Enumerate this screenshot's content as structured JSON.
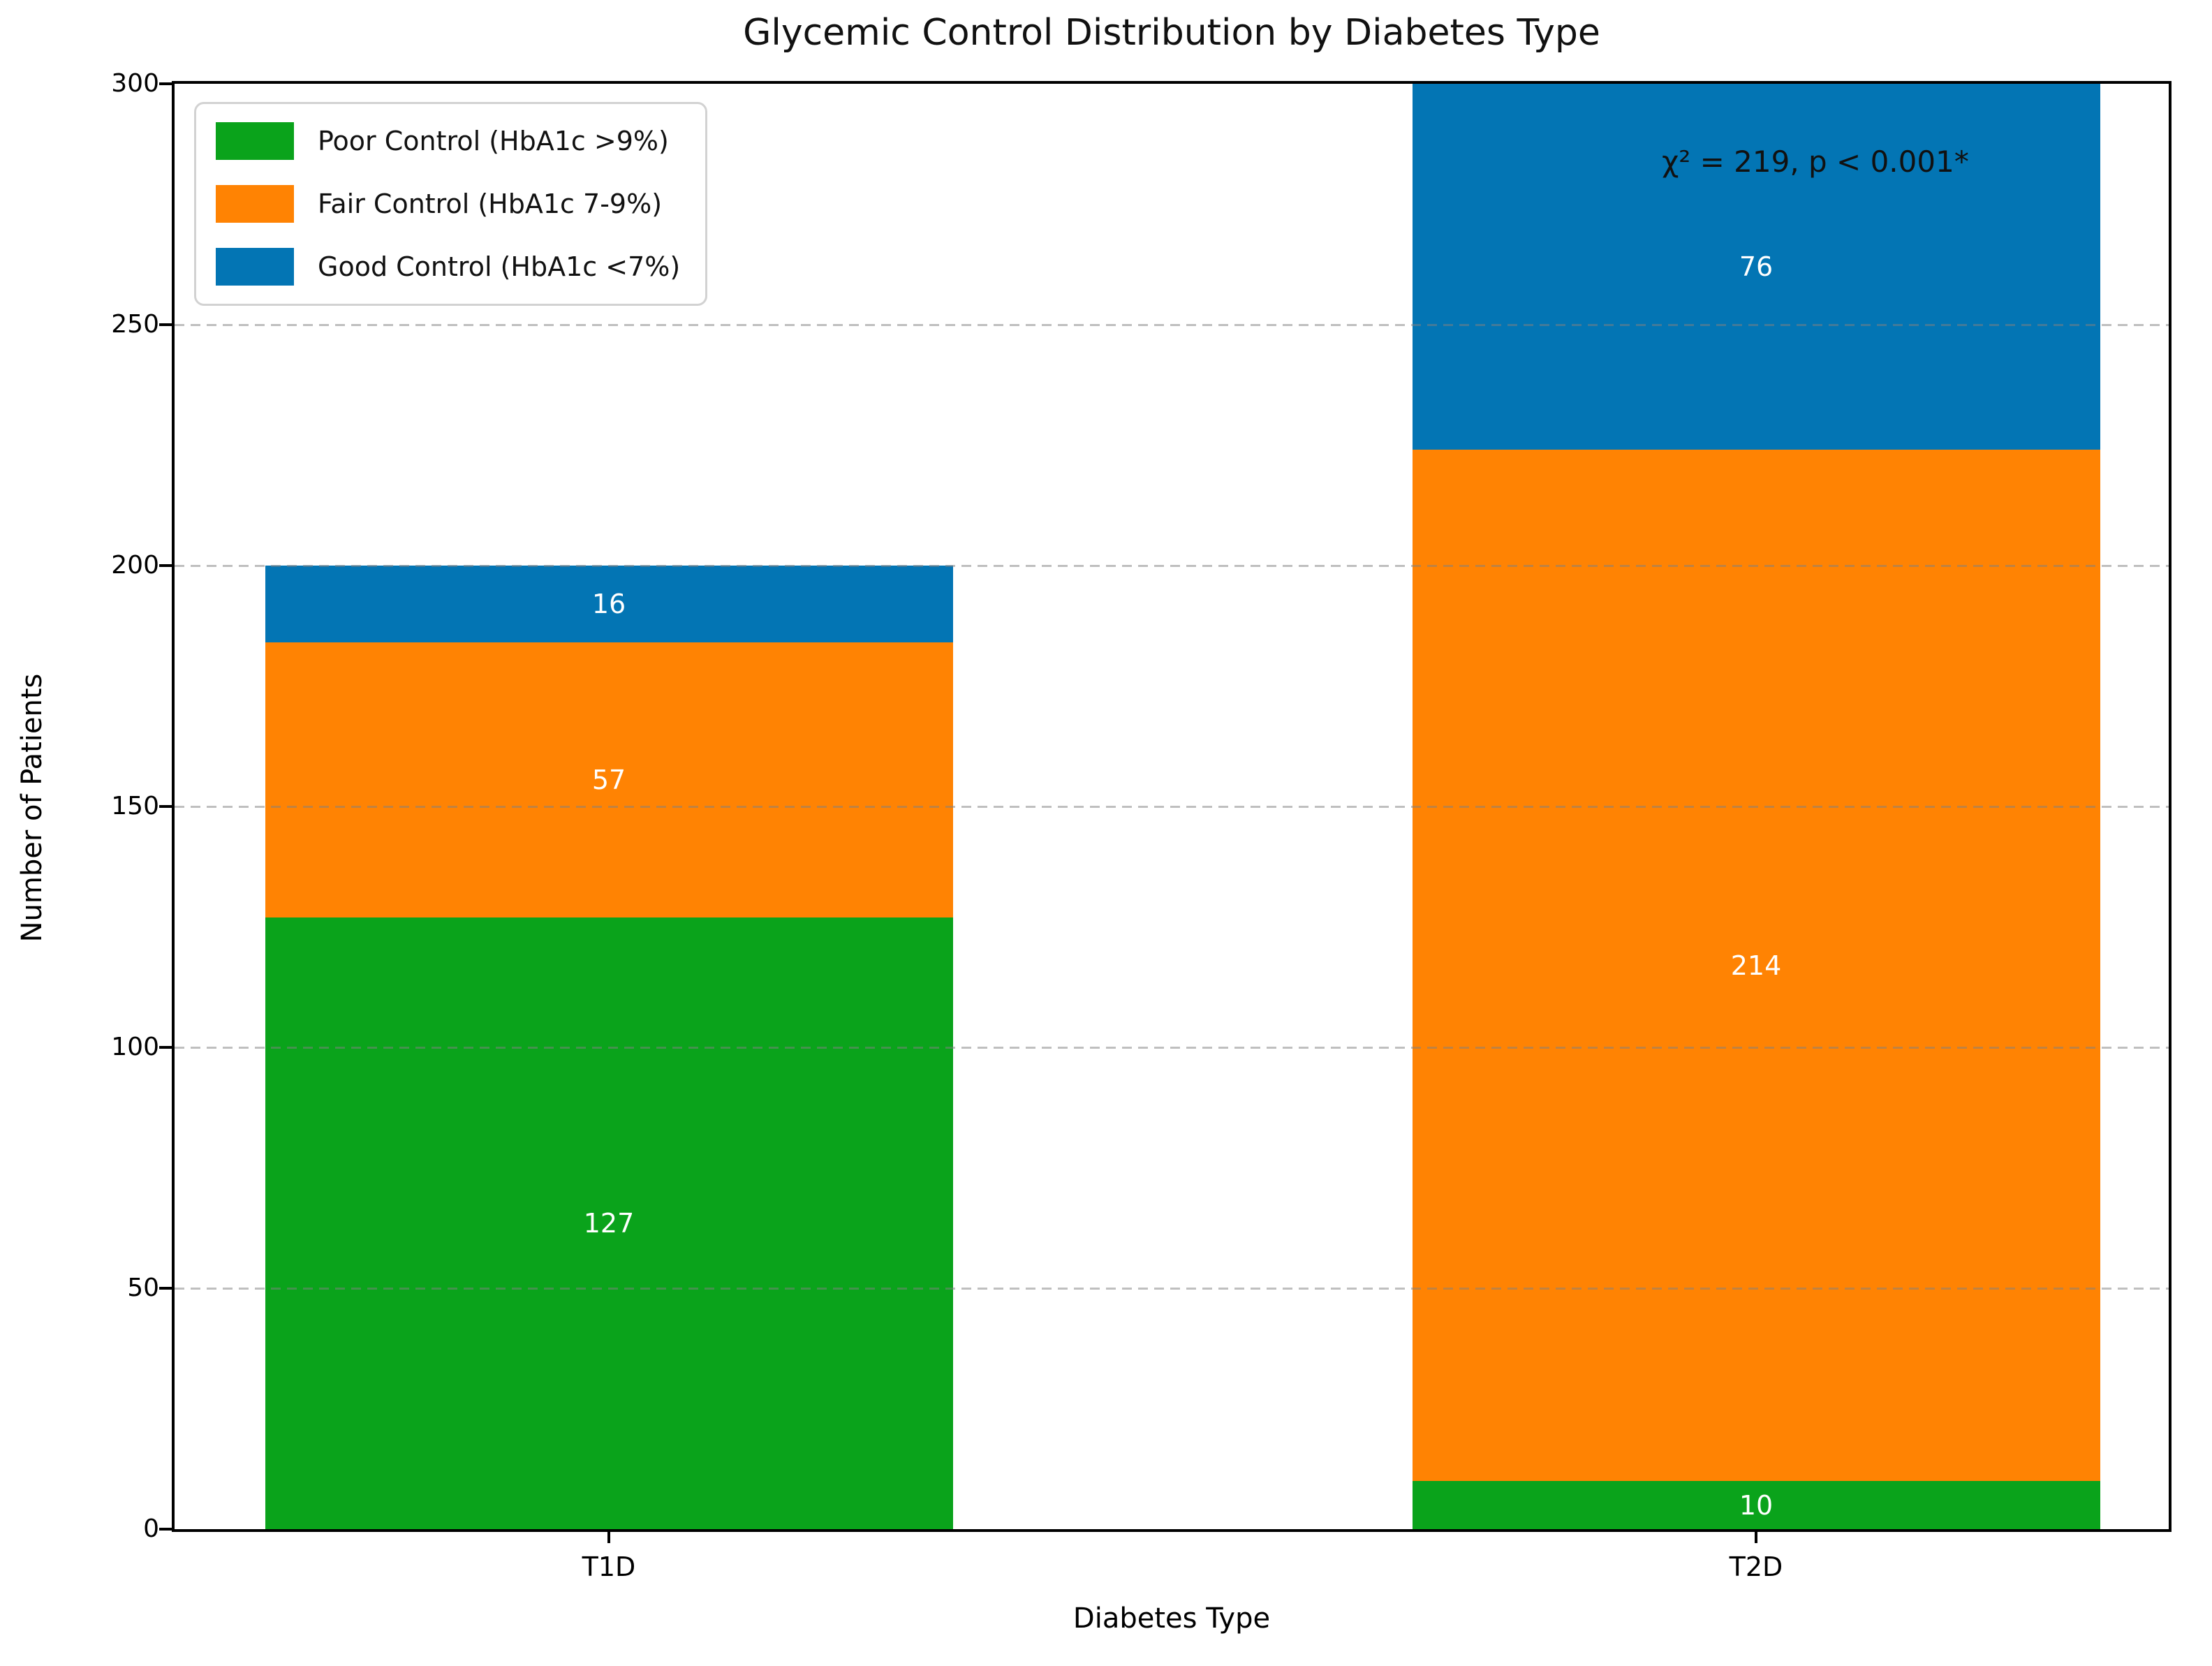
{
  "title": "Glycemic Control Distribution by Diabetes Type",
  "axes": {
    "xlabel": "Diabetes Type",
    "ylabel": "Number of Patients"
  },
  "annotation": "χ² = 219, p < 0.001*",
  "chart_data": {
    "type": "bar",
    "stacked": true,
    "title": "Glycemic Control Distribution by Diabetes Type",
    "xlabel": "Diabetes Type",
    "ylabel": "Number of Patients",
    "categories": [
      "T1D",
      "T2D"
    ],
    "series": [
      {
        "key": "poor",
        "name": "Poor Control (HbA1c >9%)",
        "color": "#0aa31b",
        "values": [
          127,
          10
        ]
      },
      {
        "key": "fair",
        "name": "Fair Control (HbA1c 7-9%)",
        "color": "#ff8303",
        "values": [
          57,
          214
        ]
      },
      {
        "key": "good",
        "name": "Good Control (HbA1c <7%)",
        "color": "#0375b4",
        "values": [
          16,
          76
        ]
      }
    ],
    "totals": [
      200,
      300
    ],
    "bar_value_label_color": "#ffffff",
    "ylim": [
      0,
      300
    ],
    "yticks": [
      0,
      50,
      100,
      150,
      200,
      250,
      300
    ],
    "grid": {
      "axis": "y",
      "style": "dashed",
      "color": "#808080",
      "alpha": 0.5
    },
    "legend_position": "upper left",
    "annotation": {
      "text": "χ² = 219, p < 0.001*",
      "color": "#111111"
    }
  }
}
